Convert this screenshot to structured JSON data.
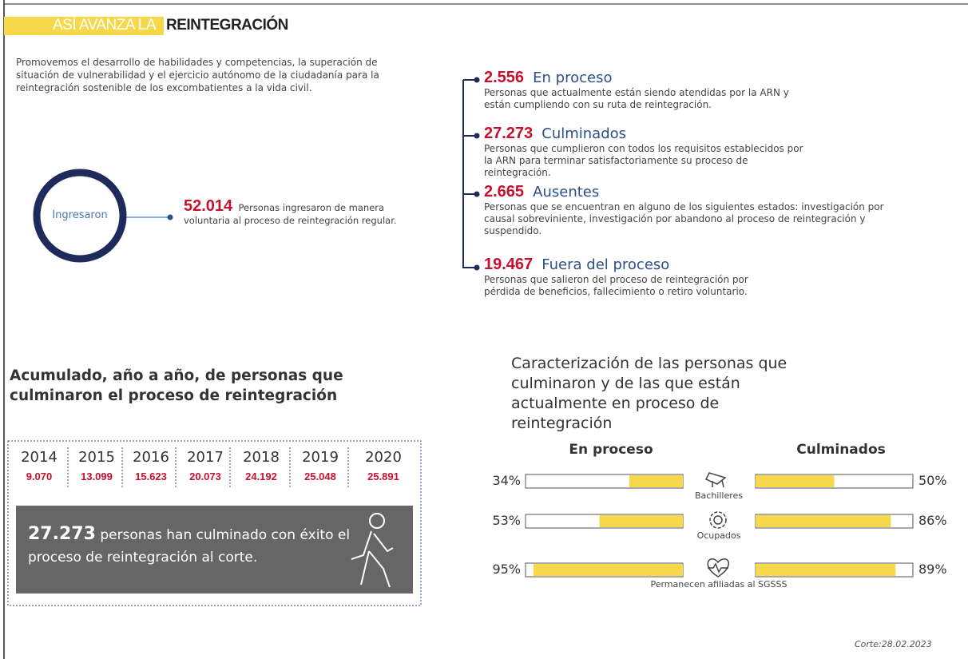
{
  "header": {
    "title_highlight": "ASÍ AVANZA LA",
    "title_rest": "REINTEGRACIÓN"
  },
  "intro": "Promovemos el desarrollo de habilidades y competencias, la superación de situación de vulnerabilidad y el ejercicio autónomo de la ciudadanía para la reintegración sostenible de los excombatientes a la vida civil.",
  "ingresaron": {
    "label": "Ingresaron",
    "number": "52.014",
    "text": "Personas  ingresaron de manera voluntaria al proceso de reintegración regular."
  },
  "statuses": [
    {
      "number": "2.556",
      "label": "En proceso",
      "description": "Personas que actualmente están siendo atendidas por la ARN y están cumpliendo con su ruta de reintegración."
    },
    {
      "number": "27.273",
      "label": "Culminados",
      "description": "Personas que cumplieron con todos los requisitos establecidos por la ARN para terminar satisfactoriamente su proceso de reintegración."
    },
    {
      "number": "2.665",
      "label": "Ausentes",
      "description": "Personas que se encuentran en alguno de los siguientes estados: investigación por causal sobreviniente, investigación por abandono al proceso de reintegración y suspendido."
    },
    {
      "number": "19.467",
      "label": "Fuera del proceso",
      "description": "Personas que salieron del proceso de reintegración por pérdida de beneficios, fallecimiento o retiro voluntario."
    }
  ],
  "yearly": {
    "title": "Acumulado, año a año, de personas que culminaron el proceso de reintegración",
    "years": [
      "2014",
      "2015",
      "2016",
      "2017",
      "2018",
      "2019",
      "2020"
    ],
    "values": [
      "9.070",
      "13.099",
      "15.623",
      "20.073",
      "24.192",
      "25.048",
      "25.891"
    ],
    "banner_number": "27.273",
    "banner_text": "personas han culminado con éxito el proceso de reintegración al corte."
  },
  "chart_data": {
    "type": "bar",
    "title": "Caracterización de las personas que culminaron y de las que están actualmente en proceso de reintegración",
    "categories": [
      "Bachilleres",
      "Ocupados",
      "Permanecen afiliadas al SGSSS"
    ],
    "xlim": [
      0,
      100
    ],
    "series": [
      {
        "name": "En proceso",
        "color": "#f7d84a",
        "values": [
          34,
          53,
          95
        ],
        "value_labels": [
          "34%",
          "53%",
          "95%"
        ]
      },
      {
        "name": "Culminados",
        "color": "#f7d84a",
        "values": [
          50,
          86,
          89
        ],
        "value_labels": [
          "50%",
          "86%",
          "89%"
        ]
      }
    ]
  },
  "footer": "Corte:28.02.2023"
}
